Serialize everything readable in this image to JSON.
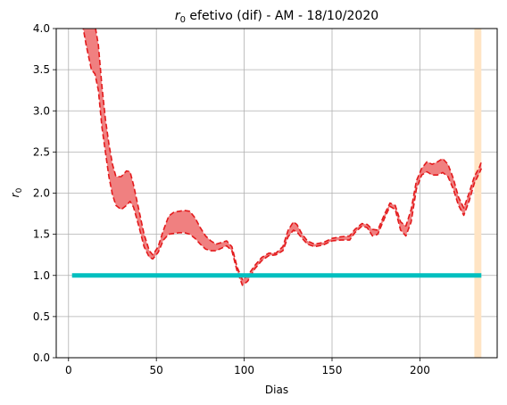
{
  "chart_data": {
    "type": "area",
    "title_math": "r",
    "title_sub": "0",
    "title_rest": " efetivo (dif) - AM - 18/10/2020",
    "xlabel": "Dias",
    "ylabel_math": "r",
    "ylabel_sub": "0",
    "xlim": [
      -7,
      244
    ],
    "ylim": [
      0,
      4.0
    ],
    "x_ticks": [
      0,
      50,
      100,
      150,
      200
    ],
    "x_tick_labels": [
      "0",
      "50",
      "100",
      "150",
      "200"
    ],
    "y_ticks": [
      0,
      0.5,
      1.0,
      1.5,
      2.0,
      2.5,
      3.0,
      3.5,
      4.0
    ],
    "y_tick_labels": [
      "0.0",
      "0.5",
      "1.0",
      "1.5",
      "2.0",
      "2.5",
      "3.0",
      "3.5",
      "4.0"
    ],
    "grid": true,
    "colors": {
      "band_fill": "#f08080",
      "band_edge": "#e31a1c",
      "reference_line": "#00bfbf",
      "highlight_span": "#ffe4c4"
    },
    "highlight_span": [
      231,
      235
    ],
    "reference_line": {
      "x": [
        2,
        235
      ],
      "y": 1.0
    },
    "series": [
      {
        "role": "upper",
        "x": [
          8,
          10,
          13,
          15,
          17,
          19,
          21,
          23,
          25,
          27,
          30,
          33,
          35,
          37,
          40,
          43,
          46,
          48,
          51,
          54,
          57,
          60,
          63,
          66,
          69,
          72,
          75,
          78,
          81,
          84,
          87,
          90,
          93,
          96,
          99,
          102,
          106,
          110,
          114,
          118,
          122,
          125,
          128,
          130,
          133,
          136,
          140,
          145,
          150,
          155,
          160,
          163,
          167,
          170,
          173,
          176,
          180,
          183,
          186,
          189,
          192,
          195,
          198,
          201,
          204,
          207,
          210,
          213,
          216,
          219,
          222,
          225,
          228,
          231,
          234,
          235
        ],
        "y": [
          4.05,
          4.35,
          4.3,
          4.05,
          3.8,
          3.3,
          2.9,
          2.6,
          2.35,
          2.2,
          2.2,
          2.27,
          2.26,
          2.1,
          1.8,
          1.5,
          1.3,
          1.25,
          1.35,
          1.55,
          1.72,
          1.77,
          1.78,
          1.79,
          1.78,
          1.7,
          1.58,
          1.48,
          1.42,
          1.38,
          1.4,
          1.42,
          1.35,
          1.1,
          0.95,
          1.0,
          1.12,
          1.22,
          1.27,
          1.27,
          1.35,
          1.55,
          1.65,
          1.62,
          1.5,
          1.42,
          1.38,
          1.4,
          1.45,
          1.47,
          1.48,
          1.56,
          1.63,
          1.62,
          1.56,
          1.55,
          1.75,
          1.88,
          1.85,
          1.65,
          1.6,
          1.8,
          2.15,
          2.3,
          2.38,
          2.35,
          2.38,
          2.42,
          2.35,
          2.18,
          1.95,
          1.82,
          2.0,
          2.2,
          2.32,
          2.38
        ]
      },
      {
        "role": "lower",
        "x": [
          8,
          10,
          13,
          15,
          17,
          19,
          21,
          23,
          25,
          27,
          30,
          33,
          35,
          37,
          40,
          43,
          46,
          48,
          51,
          54,
          57,
          60,
          63,
          66,
          69,
          72,
          75,
          78,
          81,
          84,
          87,
          90,
          93,
          96,
          99,
          102,
          106,
          110,
          114,
          118,
          122,
          125,
          128,
          130,
          133,
          136,
          140,
          145,
          150,
          155,
          160,
          163,
          167,
          170,
          173,
          176,
          180,
          183,
          186,
          189,
          192,
          195,
          198,
          201,
          204,
          207,
          210,
          213,
          216,
          219,
          222,
          225,
          228,
          231,
          234,
          235
        ],
        "y": [
          4.05,
          3.8,
          3.5,
          3.45,
          3.25,
          2.8,
          2.5,
          2.2,
          1.98,
          1.85,
          1.8,
          1.85,
          1.9,
          1.83,
          1.6,
          1.35,
          1.22,
          1.2,
          1.28,
          1.43,
          1.5,
          1.51,
          1.52,
          1.52,
          1.5,
          1.45,
          1.38,
          1.32,
          1.3,
          1.3,
          1.33,
          1.36,
          1.3,
          1.05,
          0.88,
          0.93,
          1.08,
          1.18,
          1.24,
          1.25,
          1.3,
          1.47,
          1.55,
          1.53,
          1.45,
          1.38,
          1.35,
          1.37,
          1.42,
          1.43,
          1.43,
          1.52,
          1.6,
          1.58,
          1.48,
          1.5,
          1.7,
          1.84,
          1.8,
          1.55,
          1.48,
          1.65,
          2.05,
          2.22,
          2.26,
          2.22,
          2.22,
          2.25,
          2.2,
          2.05,
          1.85,
          1.73,
          1.9,
          2.12,
          2.25,
          2.3
        ]
      }
    ]
  }
}
